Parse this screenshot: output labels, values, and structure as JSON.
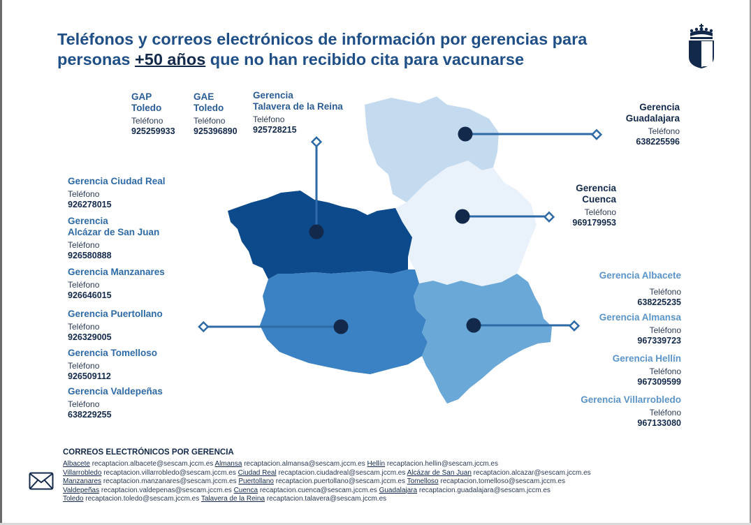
{
  "title": {
    "line1": "Teléfonos y correos electrónicos de información por gerencias para",
    "line2_before": "personas ",
    "line2_highlight": "+50 años",
    "line2_after": " que no han recibido cita para vacunarse"
  },
  "crest_icon": "castilla-la-mancha-crest-icon",
  "colors": {
    "title_blue": "#1f4f86",
    "toledo": "#0d4a8c",
    "ciudad_real": "#3a82c3",
    "guadalajara": "#c4daef",
    "cuenca": "#e9f1fa",
    "albacete": "#6aa8d8",
    "marker": "#13294b"
  },
  "gerencias": {
    "gap_toledo": {
      "name1": "GAP",
      "name2": "Toledo",
      "label": "Teléfono",
      "phone": "925259933"
    },
    "gae_toledo": {
      "name1": "GAE",
      "name2": "Toledo",
      "label": "Teléfono",
      "phone": "925396890"
    },
    "talavera": {
      "name1": "Gerencia",
      "name2": "Talavera de la Reina",
      "label": "Teléfono",
      "phone": "925728215"
    },
    "guadalajara": {
      "name1": "Gerencia",
      "name2": "Guadalajara",
      "label": "Teléfono",
      "phone": "638225596"
    },
    "cuenca": {
      "name1": "Gerencia",
      "name2": "Cuenca",
      "label": "Teléfono",
      "phone": "969179953"
    },
    "ciudad_real": {
      "name": "Gerencia Ciudad Real",
      "label": "Teléfono",
      "phone": "926278015"
    },
    "alcazar": {
      "name1": "Gerencia",
      "name2": "Alcázar de San Juan",
      "label": "Teléfono",
      "phone": "926580888"
    },
    "manzanares": {
      "name": "Gerencia Manzanares",
      "label": "Teléfono",
      "phone": "926646015"
    },
    "puertollano": {
      "name": "Gerencia Puertollano",
      "label": "Teléfono",
      "phone": "926329005"
    },
    "tomelloso": {
      "name": "Gerencia Tomelloso",
      "label": "Teléfono",
      "phone": "926509112"
    },
    "valdepenas": {
      "name": "Gerencia Valdepeñas",
      "label": "Teléfono",
      "phone": "638229255"
    },
    "albacete": {
      "name": "Gerencia Albacete",
      "label": "Teléfono",
      "phone": "638225235"
    },
    "almansa": {
      "name": "Gerencia Almansa",
      "label": "Teléfono",
      "phone": "967339723"
    },
    "hellin": {
      "name": "Gerencia Hellín",
      "label": "Teléfono",
      "phone": "967309599"
    },
    "villarrobledo": {
      "name": "Gerencia Villarrobledo",
      "label": "Teléfono",
      "phone": "967133080"
    }
  },
  "emails_heading": "CORREOS ELECTRÓNICOS POR GERENCIA",
  "mail_icon": "envelope-icon",
  "email_lines": [
    [
      [
        "Albacete",
        "recaptacion.albacete@sescam.jccm.es"
      ],
      [
        "Almansa",
        "recaptacion.almansa@sescam.jccm.es"
      ],
      [
        "Hellín",
        "recaptacion.hellin@sescam.jccm.es"
      ]
    ],
    [
      [
        "Villarrobledo",
        "recaptacion.villarrobledo@sescam.jccm.es"
      ],
      [
        "Ciudad Real",
        "recaptacion.ciudadreal@sescam.jccm.es"
      ],
      [
        "Alcázar de San Juan",
        "recaptacion.alcazar@sescam.jccm.es"
      ]
    ],
    [
      [
        "Manzanares",
        "recaptacion.manzanares@sescam.jccm.es"
      ],
      [
        "Puertollano",
        "recaptacion.puertollano@sescam.jccm.es"
      ],
      [
        "Tomelloso",
        "recaptacion.tomelloso@sescam.jccm.es"
      ]
    ],
    [
      [
        "Valdepeñas",
        "recaptacion.valdepenas@sescam.jccm.es"
      ],
      [
        "Cuenca",
        "recaptacion.cuenca@sescam.jccm.es"
      ],
      [
        "Guadalajara",
        "recaptacion.guadalajara@sescam.jccm.es"
      ]
    ],
    [
      [
        "Toledo",
        "recaptacion.toledo@sescam.jccm.es"
      ],
      [
        "Talavera de la Reina",
        "recaptacion.talavera@sescam.jccm.es"
      ]
    ]
  ]
}
